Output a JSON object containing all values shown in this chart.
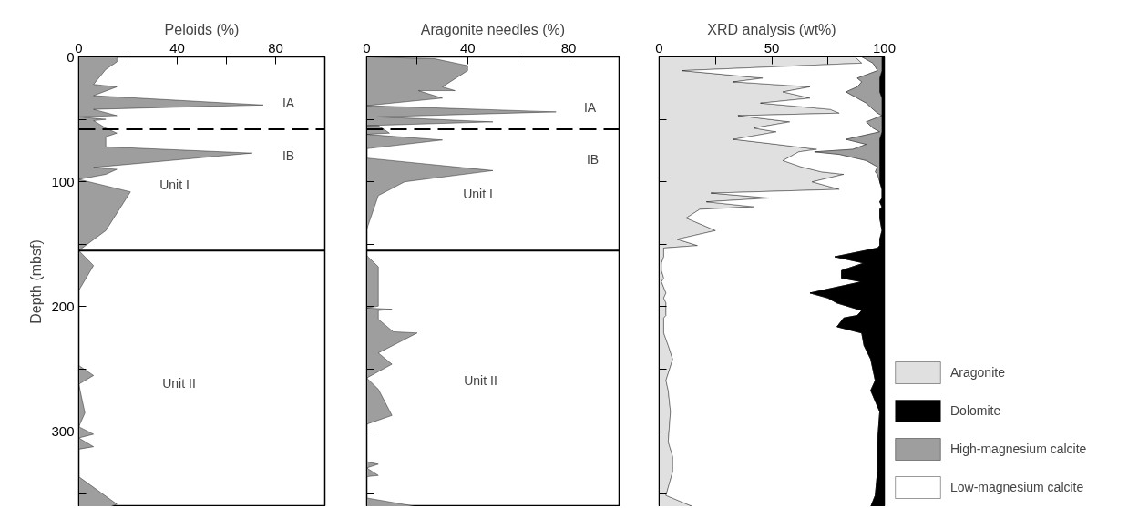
{
  "chart_data": [
    {
      "type": "area",
      "orientation": "horizontal",
      "xlabel": "Peloids (%)",
      "ylabel": "Depth (mbsf)",
      "x": [
        0,
        4,
        10,
        22,
        24,
        31,
        38.5,
        42,
        47,
        48,
        50,
        51,
        57,
        61,
        64,
        72,
        77,
        88.5,
        90,
        94,
        98,
        108,
        139,
        155,
        167,
        187,
        247,
        255,
        262,
        285,
        296,
        302,
        305,
        312,
        314,
        336,
        358,
        360
      ],
      "series": [
        {
          "color": "#9e9e9e",
          "values": [
            15.5,
            15.5,
            11,
            6,
            15.5,
            6,
            75,
            6,
            15.5,
            0,
            11,
            6,
            11,
            15.5,
            11,
            11,
            70.5,
            6,
            15.5,
            11,
            0,
            21,
            11,
            0,
            6,
            0,
            0,
            6,
            0,
            2.5,
            0,
            6,
            0,
            6,
            0,
            0,
            15.5,
            13
          ]
        }
      ],
      "xlim": [
        0,
        100
      ],
      "xticks": [
        0,
        {
          "value": 20,
          "label": null
        },
        40,
        {
          "value": 60,
          "label": null
        },
        80,
        {
          "value": 100,
          "label": null
        }
      ],
      "ylim": [
        360,
        0
      ],
      "yticks": [
        0,
        {
          "value": 50,
          "label": null
        },
        100,
        {
          "value": 150,
          "label": null
        },
        200,
        {
          "value": 250,
          "label": null
        },
        300,
        {
          "value": 350,
          "label": null
        }
      ],
      "ref_lines": [
        {
          "axis": "y",
          "value": 58,
          "line_style": "dashed"
        },
        {
          "axis": "y",
          "value": 155,
          "line_style": "solid"
        }
      ],
      "annotations": [
        "IA",
        "IB",
        "Unit I",
        "Unit II"
      ],
      "grid": false,
      "legend": false
    },
    {
      "type": "area",
      "orientation": "horizontal",
      "xlabel": "Aragonite needles (%)",
      "x": [
        0,
        1.5,
        7,
        11,
        24,
        27,
        27,
        27,
        33,
        39,
        44,
        48,
        52,
        55,
        55,
        61,
        62,
        66.5,
        73.5,
        81,
        91,
        100,
        111,
        138,
        159,
        168,
        199.5,
        201,
        202,
        203,
        210,
        220,
        221,
        237,
        246,
        257,
        266,
        287,
        294,
        324,
        326,
        329,
        335,
        336,
        353,
        360
      ],
      "series": [
        {
          "color": "#9e9e9e",
          "values": [
            0,
            27,
            40,
            40,
            30,
            35,
            30,
            20.5,
            30,
            0,
            75,
            4.6,
            50,
            0,
            4.6,
            9,
            0,
            30,
            0,
            0,
            50,
            15,
            4.6,
            0,
            0,
            4.6,
            4.6,
            0,
            10,
            4.6,
            4.6,
            10.5,
            20,
            4.6,
            10,
            0,
            4.6,
            10,
            0,
            0,
            4.6,
            0,
            4.6,
            0,
            0,
            20
          ]
        }
      ],
      "xlim": [
        0,
        100
      ],
      "xticks": [
        0,
        {
          "value": 20,
          "label": null
        },
        40,
        {
          "value": 60,
          "label": null
        },
        80,
        {
          "value": 100,
          "label": null
        }
      ],
      "ylim": [
        360,
        0
      ],
      "yticks": [
        0,
        50,
        100,
        150,
        200,
        250,
        300,
        350
      ],
      "tick_labels": "x",
      "ref_lines": [
        {
          "axis": "y",
          "value": 58,
          "line_style": "dashed"
        },
        {
          "axis": "y",
          "value": 155,
          "line_style": "solid"
        }
      ],
      "annotations": [
        "IA",
        "IB",
        "Unit I",
        "Unit II"
      ],
      "grid": false,
      "legend": false
    },
    {
      "type": "area",
      "orientation": "horizontal",
      "stacked": true,
      "xlabel": "XRD analysis (wt%)",
      "x": [
        0,
        5,
        11,
        17,
        20,
        24,
        28,
        33,
        37,
        42,
        45,
        47,
        52,
        57,
        60,
        66,
        70,
        74,
        76,
        78,
        83,
        88,
        92,
        94,
        100,
        106,
        109,
        113,
        116,
        120,
        122,
        129,
        139,
        146,
        151,
        153,
        160,
        165,
        171,
        177,
        180,
        189,
        193,
        197,
        203,
        207,
        209,
        216,
        221,
        231,
        242,
        259,
        267,
        284,
        308,
        320,
        332,
        351,
        360
      ],
      "series": [
        {
          "name": "Aragonite",
          "color": "#e0e0e0",
          "values": [
            87,
            90,
            10,
            46,
            33,
            67,
            55,
            67,
            45,
            76,
            80,
            35,
            58,
            42,
            52,
            33,
            52,
            70,
            62,
            60,
            55,
            63,
            72,
            82,
            68,
            80,
            23,
            49,
            21,
            42,
            18,
            12,
            25,
            8,
            17,
            2,
            2,
            1,
            1,
            2,
            1,
            3,
            2,
            3,
            3,
            3,
            2,
            2,
            2,
            4,
            6,
            3,
            4,
            5,
            4,
            6,
            6,
            3,
            15
          ]
        },
        {
          "name": "Low-magnesium calcite",
          "color": "#ffffff",
          "values": [
            3,
            5,
            87,
            42,
            57,
            21,
            28,
            21,
            47,
            19,
            17,
            64,
            34,
            53,
            46,
            50,
            40,
            16,
            7,
            20,
            37,
            34,
            24,
            15,
            30,
            19,
            76,
            50,
            77,
            57,
            80,
            86,
            74,
            90,
            81,
            95,
            76,
            90,
            80,
            79,
            89,
            64,
            73,
            76,
            87,
            85,
            80,
            77,
            88,
            87,
            88,
            93,
            90,
            93,
            93,
            91,
            91,
            93,
            79
          ]
        },
        {
          "name": "High-magnesium calcite",
          "color": "#9e9e9e",
          "values": [
            9,
            4,
            2,
            10,
            8,
            10,
            15,
            11,
            7,
            4,
            2,
            0,
            7,
            4,
            1,
            15,
            6,
            12,
            29,
            18,
            6,
            1,
            2,
            1,
            0,
            0,
            0,
            0,
            0,
            0,
            0,
            0,
            0,
            0,
            0,
            0,
            0,
            0,
            0,
            0,
            0,
            0,
            0,
            0,
            0,
            0,
            0,
            0,
            0,
            0,
            0,
            0,
            0,
            0,
            0,
            0,
            0,
            0,
            0
          ]
        },
        {
          "name": "Dolomite",
          "color": "#000000",
          "values": [
            1,
            1,
            1,
            2,
            2,
            2,
            2,
            1,
            1,
            1,
            1,
            1,
            1,
            1,
            1,
            2,
            2,
            2,
            2,
            2,
            2,
            2,
            2,
            2,
            2,
            1,
            1,
            1,
            2,
            1,
            2,
            2,
            1,
            2,
            2,
            3,
            22,
            9,
            19,
            19,
            10,
            33,
            25,
            21,
            10,
            12,
            18,
            21,
            10,
            9,
            6,
            4,
            6,
            2,
            3,
            3,
            3,
            4,
            6
          ]
        }
      ],
      "xlim": [
        0,
        100
      ],
      "xticks": [
        0,
        {
          "value": 25,
          "label": null
        },
        50,
        {
          "value": 75,
          "label": null
        },
        100
      ],
      "ylim": [
        360,
        0
      ],
      "yticks": [
        0,
        50,
        100,
        150,
        200,
        250,
        300,
        350
      ],
      "tick_labels": "x",
      "grid": false,
      "legend": "right"
    }
  ]
}
